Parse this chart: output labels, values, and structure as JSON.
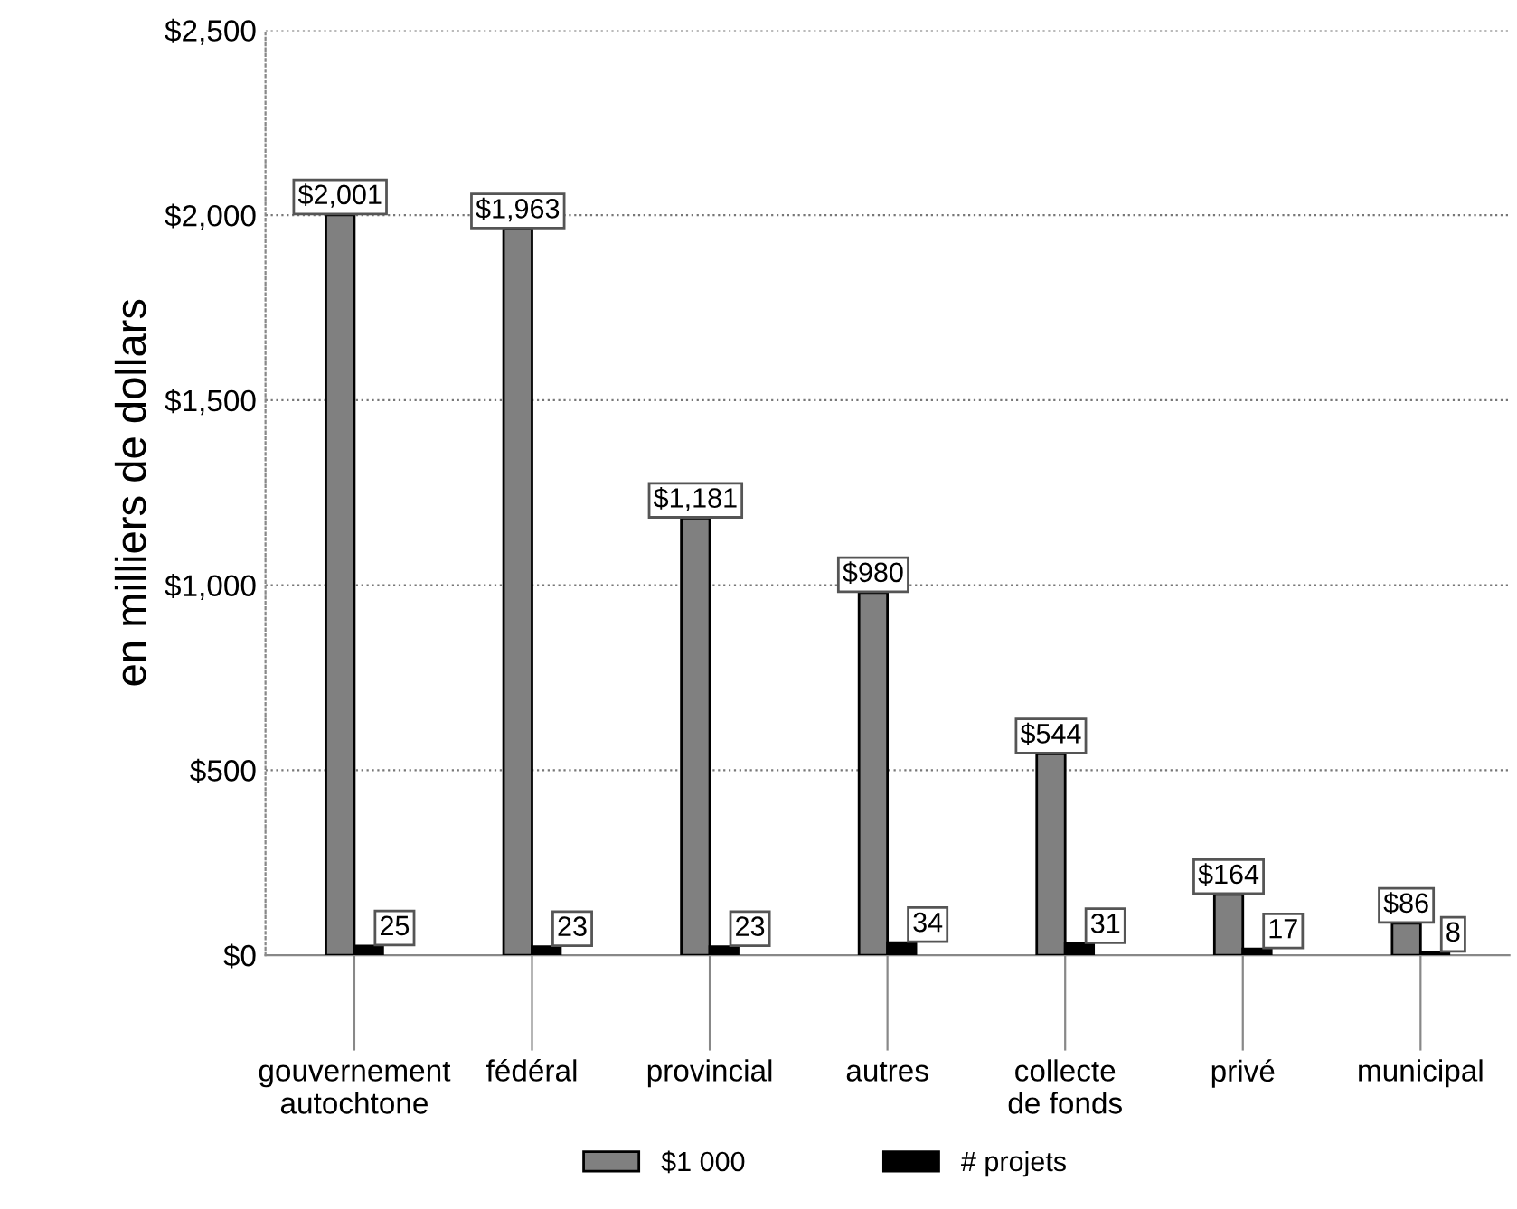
{
  "chart_data": {
    "type": "bar",
    "ylabel": "en milliers de dollars",
    "categories": [
      "gouvernement autochtone",
      "fédéral",
      "provincial",
      "autres",
      "collecte de fonds",
      "privé",
      "municipal"
    ],
    "series": [
      {
        "name": "$1 000",
        "color": "#808080",
        "values": [
          2001,
          1963,
          1181,
          980,
          544,
          164,
          86
        ],
        "value_labels": [
          "$2,001",
          "$1,963",
          "$1,181",
          "$980",
          "$544",
          "$164",
          "$86"
        ]
      },
      {
        "name": "# projets",
        "color": "#000000",
        "values": [
          25,
          23,
          23,
          34,
          31,
          17,
          8
        ],
        "data_labels": true
      }
    ],
    "ylim": [
      0,
      2500
    ],
    "yticks": [
      {
        "value": 0,
        "label": "$0"
      },
      {
        "value": 500,
        "label": "$500"
      },
      {
        "value": 1000,
        "label": "$1,000"
      },
      {
        "value": 1500,
        "label": "$1,500"
      },
      {
        "value": 2000,
        "label": "$2,000"
      },
      {
        "value": 2500,
        "label": "$2,500"
      }
    ],
    "grid": "y",
    "legend": "bottom"
  }
}
